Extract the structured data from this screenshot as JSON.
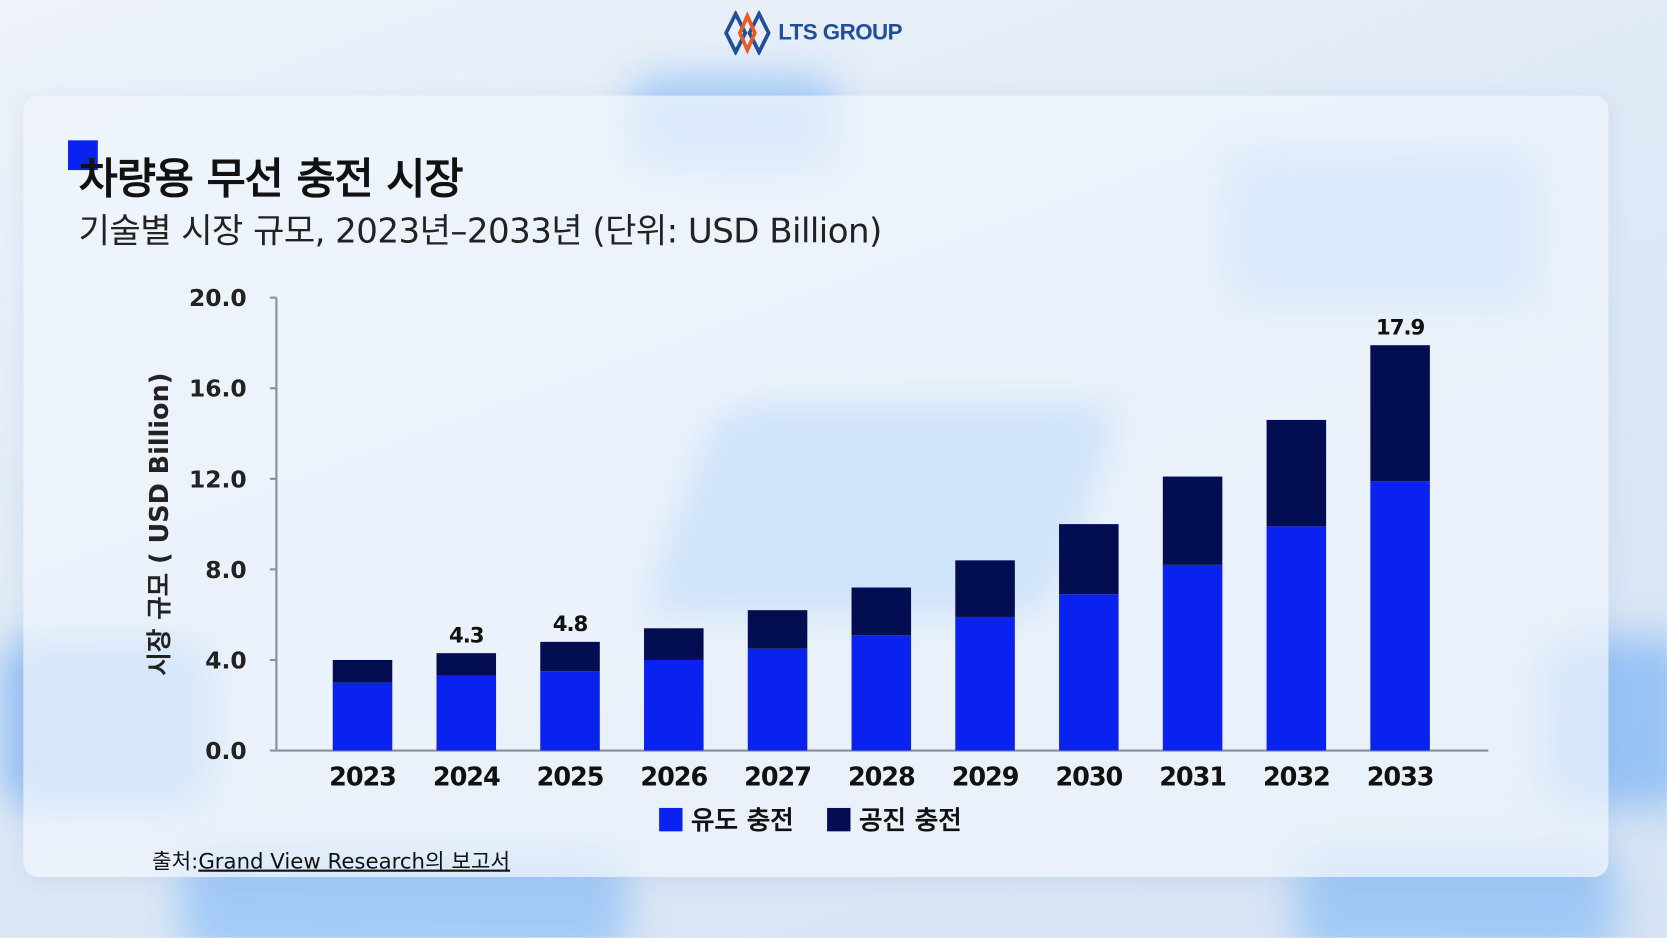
{
  "logo": {
    "text": "LTS GROUP"
  },
  "header": {
    "title": "차량용 무선 충전 시장",
    "subtitle": "기술별 시장 규모, 2023년–2033년 (단위: USD Billion)"
  },
  "colors": {
    "wired": "#0a22f0",
    "wireless": "#020d52",
    "accent": "#0a22f0"
  },
  "chart_data": {
    "type": "bar",
    "stacked": true,
    "categories": [
      "2023",
      "2024",
      "2025",
      "2026",
      "2027",
      "2028",
      "2029",
      "2030",
      "2031",
      "2032",
      "2033"
    ],
    "series": [
      {
        "name": "유도 충전",
        "values": [
          3.0,
          3.3,
          3.5,
          4.0,
          4.5,
          5.1,
          5.9,
          6.9,
          8.2,
          9.9,
          11.9
        ]
      },
      {
        "name": "공진 충전",
        "values": [
          1.0,
          1.0,
          1.3,
          1.4,
          1.7,
          2.1,
          2.5,
          3.1,
          3.9,
          4.7,
          6.0
        ]
      }
    ],
    "data_labels": [
      {
        "category": "2024",
        "text": "4.3"
      },
      {
        "category": "2025",
        "text": "4.8"
      },
      {
        "category": "2033",
        "text": "17.9"
      }
    ],
    "ylabel": "시장 규모 ( USD Billion)",
    "xlabel": "",
    "ylim": [
      0,
      20
    ],
    "yticks": [
      "0.0",
      "4.0",
      "8.0",
      "12.0",
      "16.0",
      "20.0"
    ],
    "grid": false,
    "legend": "bottom"
  },
  "footer": {
    "source_prefix": "출처:",
    "source_link": "Grand View Research의 보고서"
  }
}
